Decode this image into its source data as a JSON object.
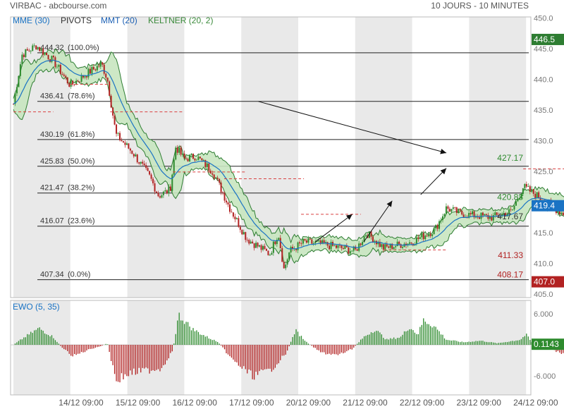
{
  "header": {
    "title": "VIRBAC - abcbourse.com",
    "period": "10 JOURS - 10 MINUTES"
  },
  "legend": [
    {
      "label": "MME (30)",
      "color": "#1a73c4"
    },
    {
      "label": "PIVOTS",
      "color": "#333333"
    },
    {
      "label": "MMT (20)",
      "color": "#1a5fb4"
    },
    {
      "label": "KELTNER (20, 2)",
      "color": "#3a8a3a"
    }
  ],
  "colors": {
    "up": "#2e8b2e",
    "down": "#b22222",
    "mme": "#1a73c4",
    "keltner_line": "#2e7d32",
    "keltner_fill": "#c8e6c0",
    "shade": "#e9e9e9"
  },
  "chart_data": [
    {
      "type": "candlestick",
      "title": "VIRBAC - abcbourse.com",
      "ylim": [
        405,
        450
      ],
      "yticks": [
        "405.0",
        "410.0",
        "415.0",
        "420.0",
        "425.0",
        "430.0",
        "435.0",
        "440.0",
        "445.0",
        "450.0"
      ],
      "x": [
        "14/12 09:00",
        "15/12 09:00",
        "16/12 09:00",
        "17/12 09:00",
        "20/12 09:00",
        "21/12 09:00",
        "22/12 09:00",
        "23/12 09:00",
        "24/12 09:00"
      ],
      "price_path": [
        [
          0,
          436
        ],
        [
          0.15,
          444
        ],
        [
          0.4,
          445.5
        ],
        [
          0.7,
          443
        ],
        [
          1.0,
          439
        ],
        [
          1.3,
          441
        ],
        [
          1.55,
          442.5
        ],
        [
          1.65,
          440
        ],
        [
          1.8,
          431
        ],
        [
          2.1,
          428
        ],
        [
          2.4,
          424
        ],
        [
          2.55,
          421
        ],
        [
          2.75,
          422
        ],
        [
          2.85,
          429
        ],
        [
          3.0,
          427
        ],
        [
          3.2,
          427.5
        ],
        [
          3.5,
          425
        ],
        [
          3.8,
          419
        ],
        [
          4.1,
          414
        ],
        [
          4.5,
          411.5
        ],
        [
          4.65,
          415
        ],
        [
          4.75,
          409
        ],
        [
          4.85,
          412
        ],
        [
          5.1,
          413.5
        ],
        [
          5.5,
          413
        ],
        [
          6.0,
          412
        ],
        [
          6.2,
          415
        ],
        [
          6.5,
          412.5
        ],
        [
          7.0,
          413.5
        ],
        [
          7.4,
          415.5
        ],
        [
          7.6,
          419
        ],
        [
          7.9,
          418
        ],
        [
          8.4,
          417.5
        ],
        [
          8.75,
          418.5
        ],
        [
          8.95,
          422.5
        ],
        [
          9.2,
          421
        ],
        [
          9.5,
          419
        ],
        [
          9.75,
          417.5
        ],
        [
          10.0,
          415
        ],
        [
          10.08,
          419
        ]
      ],
      "pivots": [
        {
          "value": 444.32,
          "label": "444.32",
          "pct": "(100.0%)"
        },
        {
          "value": 436.41,
          "label": "436.41",
          "pct": "(78.6%)"
        },
        {
          "value": 430.19,
          "label": "430.19",
          "pct": "(61.8%)"
        },
        {
          "value": 425.83,
          "label": "425.83",
          "pct": "(50.0%)"
        },
        {
          "value": 421.47,
          "label": "421.47",
          "pct": "(38.2%)"
        },
        {
          "value": 416.07,
          "label": "416.07",
          "pct": "(23.6%)"
        },
        {
          "value": 407.34,
          "label": "407.34",
          "pct": "(0.0%)"
        }
      ],
      "right_levels": [
        {
          "value": 427.17,
          "label": "427.17",
          "color": "#2e8b2e"
        },
        {
          "value": 420.83,
          "label": "420.83",
          "color": "#2e8b2e"
        },
        {
          "value": 417.67,
          "label": "417.67",
          "color": "#333333"
        },
        {
          "value": 411.33,
          "label": "411.33",
          "color": "#b22222"
        },
        {
          "value": 408.17,
          "label": "408.17",
          "color": "#b22222"
        }
      ],
      "price_badges": [
        {
          "value": 446.5,
          "label": "446.5",
          "bg": "#2e7d32"
        },
        {
          "value": 419.4,
          "label": "419.4",
          "bg": "#1a73c4"
        },
        {
          "value": 407.0,
          "label": "407.0",
          "bg": "#b22222"
        }
      ],
      "resistance_segments": [
        {
          "x0": 1.0,
          "x1": 1.7,
          "y": 439.2,
          "color": "#d94040"
        },
        {
          "x0": 0.0,
          "x1": 0.7,
          "y": 434.7,
          "color": "#d94040"
        },
        {
          "x0": 1.7,
          "x1": 3.0,
          "y": 434.7,
          "color": "#d94040"
        },
        {
          "x0": 2.8,
          "x1": 4.1,
          "y": 424.9,
          "color": "#d94040"
        },
        {
          "x0": 3.7,
          "x1": 5.1,
          "y": 423.8,
          "color": "#d94040"
        },
        {
          "x0": 5.05,
          "x1": 6.1,
          "y": 418.0,
          "color": "#d94040"
        },
        {
          "x0": 6.5,
          "x1": 7.6,
          "y": 412.2,
          "color": "#d94040"
        },
        {
          "x0": 8.95,
          "x1": 10.05,
          "y": 425.4,
          "color": "#d94040"
        }
      ],
      "trend_arrows": [
        {
          "from": [
            4.3,
            436.4
          ],
          "to": [
            7.6,
            428.0
          ]
        },
        {
          "from": [
            5.3,
            413.5
          ],
          "to": [
            5.95,
            418.0
          ]
        },
        {
          "from": [
            6.15,
            413.5
          ],
          "to": [
            6.65,
            420.2
          ]
        },
        {
          "from": [
            7.15,
            421.2
          ],
          "to": [
            7.6,
            425.5
          ]
        }
      ]
    },
    {
      "type": "bar",
      "title": "EWO (5, 35)",
      "ylim": [
        -8.5,
        6.5
      ],
      "yticks": [
        "6.000",
        "-6.000"
      ],
      "last_value_label": "0.1143",
      "profile": [
        [
          0,
          0
        ],
        [
          0.2,
          1.5
        ],
        [
          0.45,
          3.2
        ],
        [
          0.7,
          1.5
        ],
        [
          0.85,
          -0.5
        ],
        [
          1.05,
          -2.2
        ],
        [
          1.35,
          -0.8
        ],
        [
          1.55,
          -0.2
        ],
        [
          1.65,
          0.3
        ],
        [
          1.8,
          -6.8
        ],
        [
          2.05,
          -5.5
        ],
        [
          2.3,
          -5.0
        ],
        [
          2.6,
          -4.5
        ],
        [
          2.8,
          -1.0
        ],
        [
          2.9,
          5.8
        ],
        [
          3.15,
          3.0
        ],
        [
          3.4,
          1.5
        ],
        [
          3.6,
          0.5
        ],
        [
          3.85,
          -3.0
        ],
        [
          4.2,
          -6.0
        ],
        [
          4.5,
          -5.0
        ],
        [
          4.8,
          -1.5
        ],
        [
          4.95,
          2.8
        ],
        [
          5.15,
          0.5
        ],
        [
          5.4,
          -1.5
        ],
        [
          5.7,
          -2.0
        ],
        [
          5.95,
          -0.8
        ],
        [
          6.15,
          1.5
        ],
        [
          6.35,
          3.0
        ],
        [
          6.55,
          1.0
        ],
        [
          6.8,
          1.5
        ],
        [
          6.95,
          3.5
        ],
        [
          7.1,
          2.0
        ],
        [
          7.2,
          4.8
        ],
        [
          7.4,
          3.5
        ],
        [
          7.6,
          1.0
        ],
        [
          7.9,
          0.5
        ],
        [
          8.2,
          0.8
        ],
        [
          8.5,
          0.3
        ],
        [
          8.9,
          1.0
        ],
        [
          9.0,
          2.0
        ],
        [
          9.1,
          0.5
        ],
        [
          9.35,
          -0.6
        ],
        [
          9.6,
          -1.5
        ],
        [
          9.9,
          -2.2
        ],
        [
          10.05,
          0.11
        ]
      ]
    }
  ],
  "ewo_label": "EWO (5, 35)"
}
